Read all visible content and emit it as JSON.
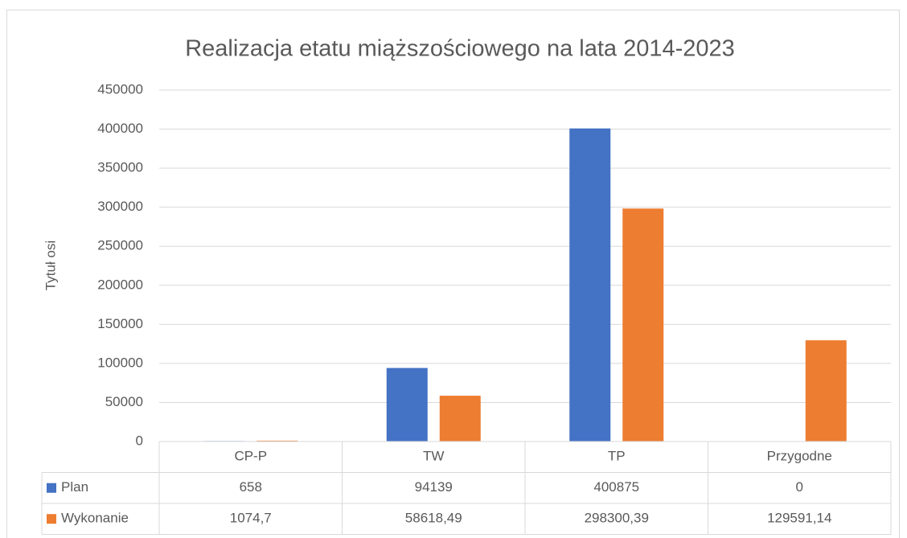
{
  "chart_data": {
    "type": "bar",
    "title": "Realizacja etatu miąższościowego na lata 2014-2023",
    "y_axis_label": "Tytuł osi",
    "categories": [
      "CP-P",
      "TW",
      "TP",
      "Przygodne"
    ],
    "series": [
      {
        "name": "Plan",
        "color": "#4472c4",
        "values": [
          658,
          94139,
          400875,
          0
        ]
      },
      {
        "name": "Wykonanie",
        "color": "#ed7d31",
        "values": [
          1074.7,
          58618.49,
          298300.39,
          129591.14
        ],
        "value_labels": [
          "1074,7",
          "58618,49",
          "298300,39",
          "129591,14"
        ]
      }
    ],
    "ylim": [
      0,
      450000
    ],
    "yticks": [
      0,
      50000,
      100000,
      150000,
      200000,
      250000,
      300000,
      350000,
      400000,
      450000
    ],
    "grid": true,
    "data_table": true
  }
}
